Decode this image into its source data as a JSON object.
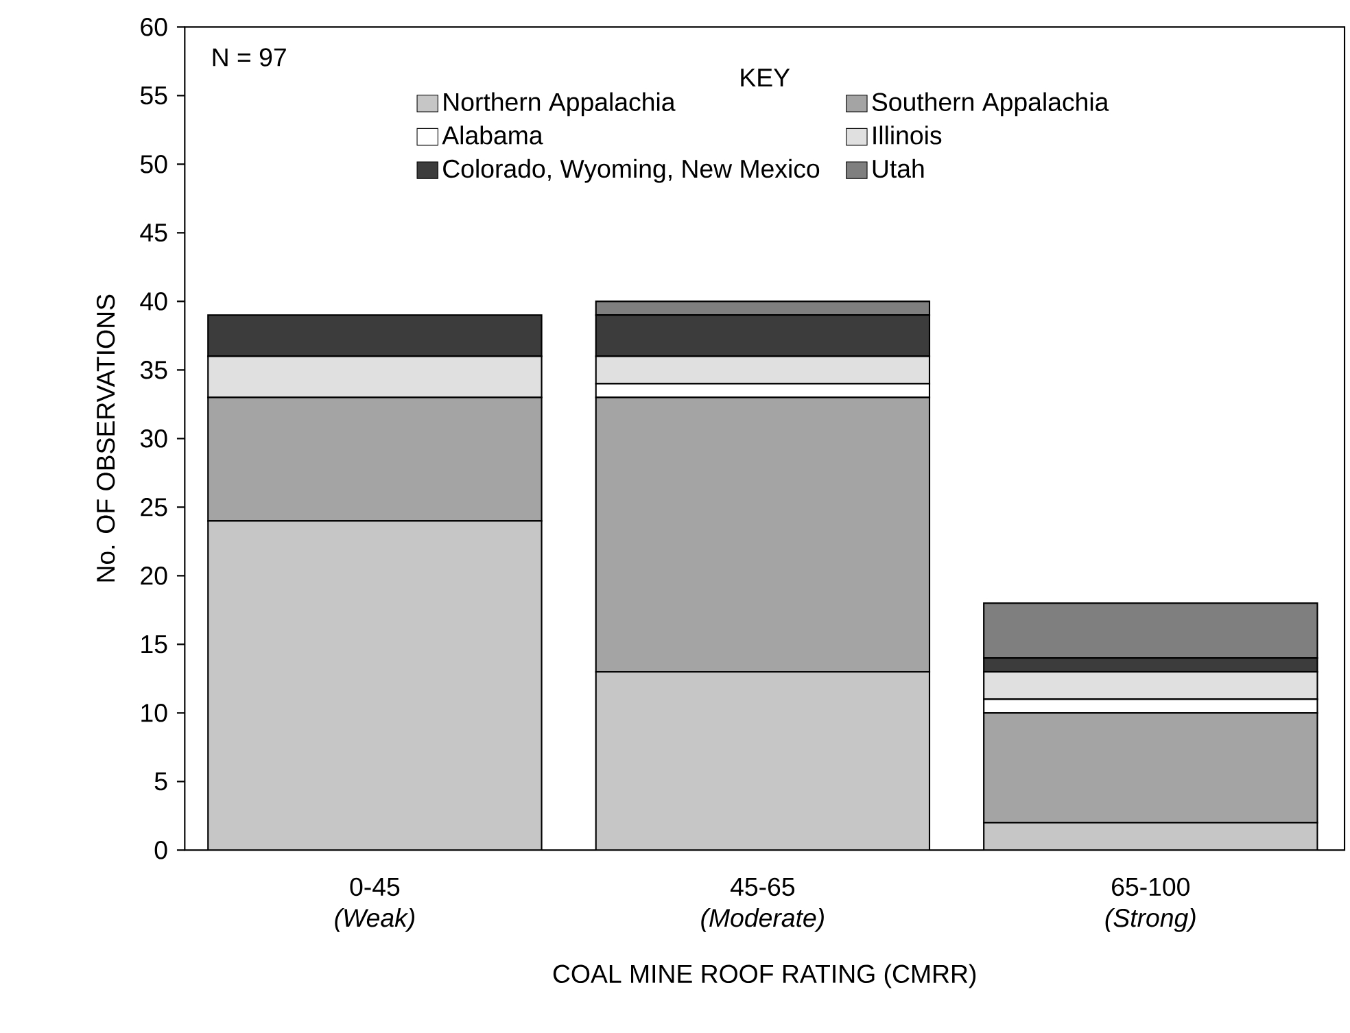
{
  "chart_data": {
    "type": "bar",
    "stacked": true,
    "categories": [
      "0-45\n*(Weak)*",
      "45-65\n*(Moderate)*",
      "65-100\n*(Strong)*"
    ],
    "xlabel": "COAL MINE ROOF RATING (CMRR)",
    "ylabel": "No. OF OBSERVATIONS",
    "legend_title": "KEY",
    "legend": "top",
    "annotations": [
      "N = 97"
    ],
    "ylim": [
      0,
      60
    ],
    "yticks": [
      0,
      5,
      10,
      15,
      20,
      25,
      30,
      35,
      40,
      45,
      50,
      55,
      60
    ],
    "series": [
      {
        "name": "Northern Appalachia",
        "color": "#c6c6c6",
        "values": [
          24,
          13,
          2
        ]
      },
      {
        "name": "Southern Appalachia",
        "color": "#a4a4a4",
        "values": [
          9,
          20,
          8
        ]
      },
      {
        "name": "Alabama",
        "color": "#ffffff",
        "values": [
          0,
          1,
          1
        ]
      },
      {
        "name": "Illinois",
        "color": "#e0e0e0",
        "values": [
          3,
          2,
          2
        ]
      },
      {
        "name": "Colorado, Wyoming, New Mexico",
        "color": "#3c3c3c",
        "values": [
          3,
          3,
          1
        ]
      },
      {
        "name": "Utah",
        "color": "#7f7f7f",
        "values": [
          0,
          1,
          4
        ]
      }
    ]
  }
}
